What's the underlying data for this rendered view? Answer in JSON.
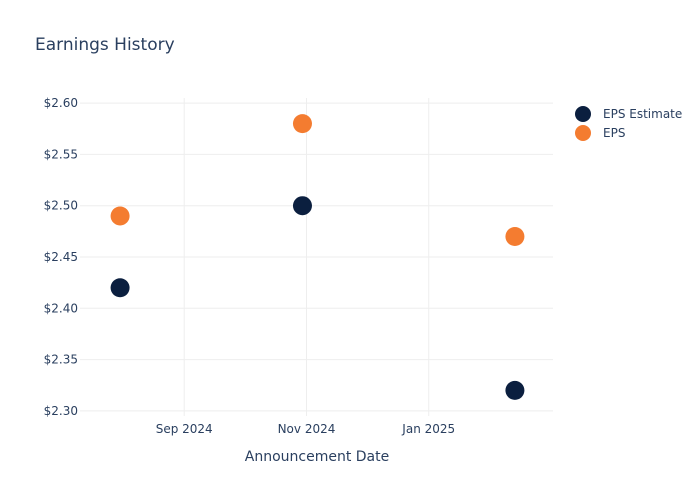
{
  "chart_data": {
    "type": "scatter",
    "title": "Earnings History",
    "xlabel": "Announcement Date",
    "ylabel": "",
    "x_ticks": [
      {
        "date": "2024-09-01",
        "label": "Sep 2024"
      },
      {
        "date": "2024-11-01",
        "label": "Nov 2024"
      },
      {
        "date": "2025-01-01",
        "label": "Jan 2025"
      }
    ],
    "xlim": [
      "2024-07-11",
      "2025-03-04"
    ],
    "y_ticks": [
      2.3,
      2.35,
      2.4,
      2.45,
      2.5,
      2.55,
      2.6
    ],
    "y_tick_labels": [
      "$2.30",
      "$2.35",
      "$2.40",
      "$2.45",
      "$2.50",
      "$2.55",
      "$2.60"
    ],
    "ylim": [
      2.295,
      2.605
    ],
    "grid": true,
    "legend_position": "top-right",
    "series": [
      {
        "name": "EPS Estimate",
        "color": "#0b1f3f",
        "points": [
          {
            "x": "2024-07-31",
            "y": 2.42
          },
          {
            "x": "2024-10-30",
            "y": 2.5
          },
          {
            "x": "2025-02-13",
            "y": 2.32
          }
        ]
      },
      {
        "name": "EPS",
        "color": "#f47c30",
        "points": [
          {
            "x": "2024-07-31",
            "y": 2.49
          },
          {
            "x": "2024-10-30",
            "y": 2.58
          },
          {
            "x": "2025-02-13",
            "y": 2.47
          }
        ]
      }
    ]
  }
}
